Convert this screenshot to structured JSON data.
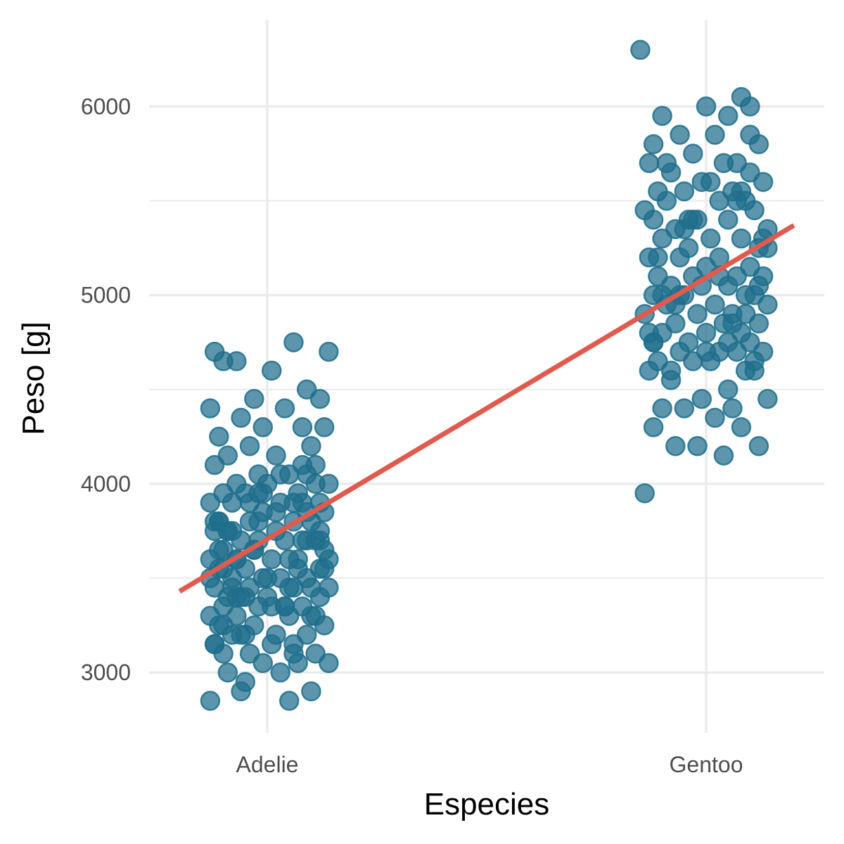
{
  "chart_data": {
    "type": "scatter",
    "xlabel": "Especies",
    "ylabel": "Peso [g]",
    "categories": [
      "Adelie",
      "Gentoo"
    ],
    "yticks": [
      3000,
      4000,
      5000,
      6000
    ],
    "ylim": [
      2680,
      6460
    ],
    "grid": true,
    "colors": {
      "points": "#1F6E8C",
      "trend_line": "#E05A4E",
      "grid": "#EBEBEB",
      "tick_text": "#4D4D4D"
    },
    "series": [
      {
        "category": "Adelie",
        "x_jitter": [
          -0.12,
          0.06,
          0.14,
          -0.07,
          0.01,
          -0.1,
          0.12,
          -0.03,
          0.09,
          -0.13,
          0.04,
          -0.06,
          0.13,
          -0.01,
          0.08,
          -0.11,
          0.1,
          -0.04,
          0.02,
          -0.09,
          0.11,
          -0.12,
          0.05,
          -0.02,
          0.14,
          -0.07,
          0.0,
          -0.1,
          0.07,
          -0.05,
          0.12,
          -0.13,
          0.03,
          -0.08,
          0.09,
          -0.01,
          0.13,
          -0.11,
          0.06,
          -0.04,
          0.1,
          -0.09,
          0.02,
          -0.12,
          0.11,
          -0.06,
          0.04,
          -0.02,
          0.08,
          -0.1,
          0.13,
          -0.03,
          0.05,
          -0.13,
          0.01,
          -0.07,
          0.12,
          -0.11,
          0.07,
          -0.05,
          0.09,
          -0.08,
          0.03,
          -0.01,
          0.14,
          -0.12,
          0.06,
          -0.04,
          0.1,
          -0.09,
          0.0,
          -0.06,
          0.12,
          -0.1,
          0.04,
          -0.02,
          0.08,
          -0.13,
          0.11,
          -0.07,
          0.05,
          -0.11,
          0.13,
          -0.03,
          0.02,
          -0.08,
          0.09,
          -0.05,
          0.06,
          -0.12,
          0.01,
          -0.04,
          0.11,
          -0.1,
          0.07,
          -0.01,
          0.14,
          -0.09,
          0.03,
          -0.06,
          0.1,
          -0.13,
          0.05,
          -0.02,
          0.08,
          -0.11,
          0.12,
          -0.07,
          0.0,
          -0.05,
          0.06,
          -0.12,
          0.09,
          -0.03,
          0.13,
          -0.08,
          0.04,
          -0.1,
          0.11,
          -0.04,
          0.02,
          -0.09,
          0.07,
          -0.13,
          0.1,
          -0.06,
          0.03,
          -0.01,
          0.12,
          -0.11,
          0.05,
          -0.07,
          0.08,
          -0.02,
          0.14,
          -0.1,
          0.01,
          -0.12,
          0.06,
          -0.05,
          0.09,
          -0.08
        ],
        "y": [
          4700,
          4750,
          4700,
          4650,
          4600,
          4650,
          4450,
          4450,
          4500,
          4400,
          4400,
          4350,
          4300,
          4300,
          4300,
          4250,
          4200,
          4200,
          4150,
          4150,
          4100,
          4100,
          4050,
          4050,
          4000,
          4000,
          4000,
          3950,
          3950,
          3950,
          3900,
          3900,
          3900,
          3900,
          3850,
          3850,
          3850,
          3800,
          3800,
          3800,
          3800,
          3750,
          3750,
          3750,
          3700,
          3700,
          3700,
          3700,
          3700,
          3650,
          3650,
          3650,
          3600,
          3600,
          3600,
          3600,
          3550,
          3550,
          3550,
          3550,
          3500,
          3500,
          3500,
          3500,
          3450,
          3450,
          3450,
          3450,
          3450,
          3400,
          3400,
          3400,
          3400,
          3350,
          3350,
          3350,
          3350,
          3300,
          3300,
          3300,
          3300,
          3250,
          3250,
          3250,
          3200,
          3200,
          3200,
          3200,
          3150,
          3150,
          3150,
          3100,
          3100,
          3100,
          3050,
          3050,
          3050,
          3000,
          3000,
          2900,
          2900,
          2850,
          2850,
          3950,
          3900,
          3800,
          3700,
          3600,
          3500,
          3400,
          3900,
          3800,
          3700,
          3650,
          3550,
          3450,
          3350,
          3250,
          4000,
          3900,
          3850,
          3750,
          3600,
          3500,
          3300,
          3200,
          4050,
          3950,
          3750,
          3650,
          3450,
          3400,
          4100,
          3800,
          3600,
          3550,
          3350,
          3150,
          3100,
          2950,
          4050,
          3750
        ]
      },
      {
        "category": "Gentoo",
        "x_jitter": [
          -0.15,
          0.08,
          0.1,
          0.0,
          -0.1,
          0.05,
          -0.06,
          0.02,
          -0.12,
          0.12,
          -0.03,
          0.07,
          -0.13,
          0.04,
          -0.08,
          0.1,
          -0.01,
          0.13,
          -0.11,
          0.06,
          -0.05,
          0.09,
          -0.09,
          0.03,
          -0.14,
          0.11,
          -0.02,
          0.05,
          -0.12,
          0.14,
          -0.07,
          0.01,
          -0.1,
          0.08,
          -0.04,
          0.12,
          -0.13,
          0.03,
          -0.06,
          0.1,
          0.0,
          -0.11,
          0.07,
          -0.03,
          0.13,
          -0.08,
          0.05,
          -0.01,
          0.09,
          -0.12,
          0.11,
          -0.05,
          0.02,
          -0.09,
          0.14,
          -0.02,
          0.06,
          -0.14,
          0.04,
          -0.07,
          0.12,
          -0.1,
          0.08,
          0.0,
          -0.04,
          0.1,
          -0.12,
          0.03,
          0.13,
          -0.06,
          0.07,
          -0.11,
          0.01,
          -0.03,
          0.09,
          -0.13,
          0.11,
          -0.08,
          0.05,
          -0.01,
          0.14,
          -0.1,
          0.06,
          -0.05,
          0.02,
          -0.12,
          0.08,
          -0.07,
          0.12,
          -0.02,
          0.04,
          -0.14,
          0.1,
          -0.09,
          0.07,
          -0.04,
          0.13,
          -0.11,
          0.03,
          -0.06,
          0.09,
          -0.13,
          0.05,
          0.0,
          0.11,
          -0.08,
          0.01,
          -0.03,
          0.14,
          -0.1,
          0.06,
          -0.12,
          0.08,
          -0.05,
          0.12,
          -0.07
        ],
        "y": [
          6300,
          6050,
          6000,
          6000,
          5950,
          5950,
          5850,
          5850,
          5800,
          5800,
          5750,
          5700,
          5700,
          5700,
          5650,
          5650,
          5600,
          5600,
          5550,
          5550,
          5550,
          5500,
          5500,
          5500,
          5450,
          5450,
          5400,
          5400,
          5400,
          5350,
          5350,
          5300,
          5300,
          5300,
          5250,
          5250,
          5200,
          5200,
          5200,
          5150,
          5150,
          5100,
          5100,
          5100,
          5100,
          5050,
          5050,
          5050,
          5000,
          5000,
          5000,
          5000,
          4950,
          4950,
          4950,
          4900,
          4900,
          4900,
          4850,
          4850,
          4850,
          4800,
          4800,
          4800,
          4750,
          4750,
          4750,
          4700,
          4700,
          4700,
          4700,
          4650,
          4650,
          4650,
          4600,
          4600,
          4600,
          4550,
          4500,
          4450,
          4450,
          4400,
          4400,
          4400,
          4350,
          4300,
          4300,
          4200,
          4200,
          4200,
          4150,
          3950,
          5850,
          5700,
          5500,
          5400,
          5300,
          5200,
          5100,
          5000,
          4900,
          4800,
          4750,
          4700,
          4650,
          4600,
          5600,
          5400,
          5250,
          5000,
          4850,
          4750,
          5550,
          5350,
          5050,
          4950
        ]
      }
    ],
    "trend_line": {
      "x": [
        -0.2,
        1.2
      ],
      "y": [
        3430,
        5370
      ]
    }
  }
}
